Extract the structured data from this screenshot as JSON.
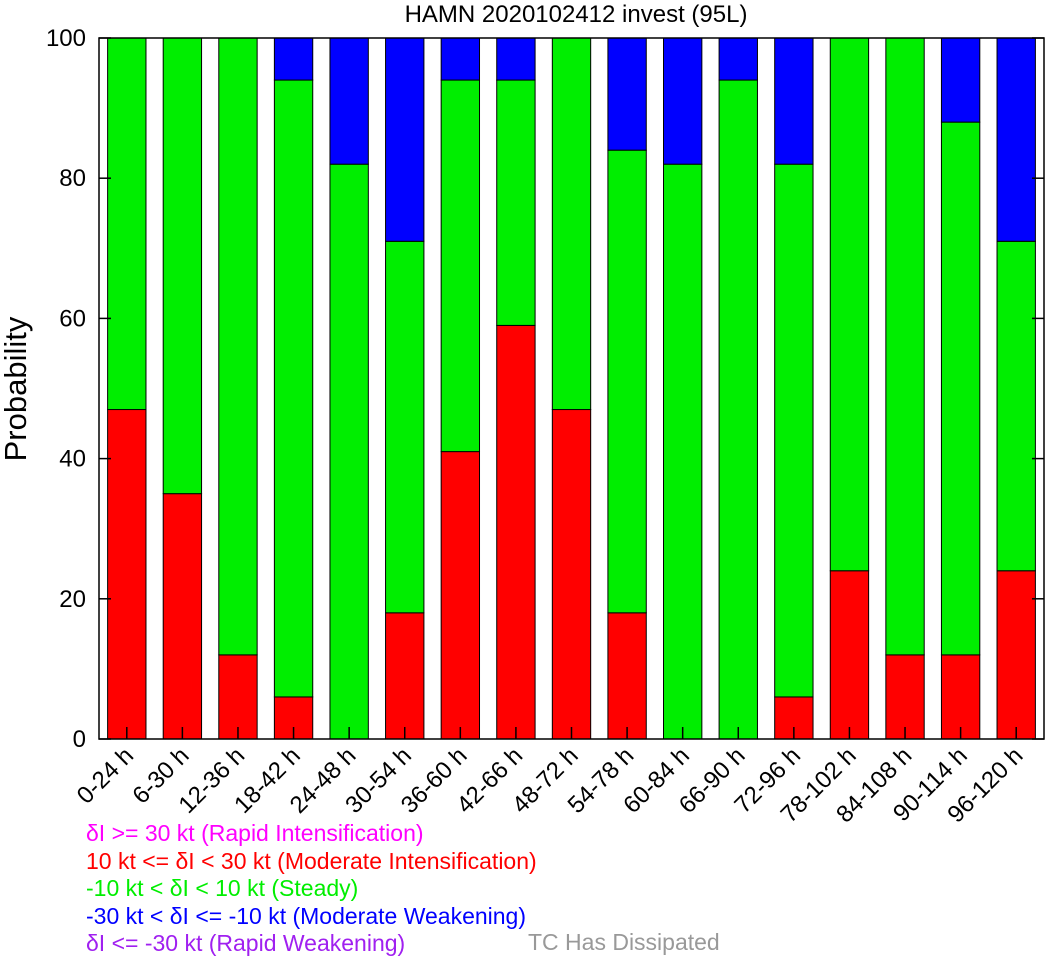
{
  "chart_data": {
    "type": "bar",
    "stacked": true,
    "title": "HAMN 2020102412 invest (95L)",
    "xlabel": "",
    "ylabel": "Probability",
    "ylim": [
      0,
      100
    ],
    "yticks": [
      "0",
      "20",
      "40",
      "60",
      "80",
      "100"
    ],
    "grid": false,
    "categories": [
      "0-24 h",
      "6-30 h",
      "12-36 h",
      "18-42 h",
      "24-48 h",
      "30-54 h",
      "36-60 h",
      "42-66 h",
      "48-72 h",
      "54-78 h",
      "60-84 h",
      "66-90 h",
      "72-96 h",
      "78-102 h",
      "84-108 h",
      "90-114 h",
      "96-120 h"
    ],
    "series": [
      {
        "name": "10 kt <= δI < 30 kt (Moderate Intensification)",
        "color": "#ff0000",
        "values": [
          47,
          35,
          12,
          6,
          0,
          18,
          41,
          59,
          47,
          18,
          0,
          0,
          6,
          24,
          12,
          12,
          24
        ]
      },
      {
        "name": "-10 kt < δI < 10 kt (Steady)",
        "color": "#00ee00",
        "values": [
          53,
          65,
          88,
          88,
          82,
          53,
          53,
          35,
          53,
          66,
          82,
          94,
          76,
          76,
          88,
          76,
          47
        ]
      },
      {
        "name": "-30 kt < δI <= -10 kt (Moderate Weakening)",
        "color": "#0000ff",
        "values": [
          0,
          0,
          0,
          6,
          18,
          29,
          6,
          6,
          0,
          16,
          18,
          6,
          18,
          0,
          0,
          12,
          29
        ]
      }
    ]
  },
  "legend": {
    "items": [
      {
        "text": "δI >= 30 kt (Rapid Intensification)",
        "color": "#ff00ff"
      },
      {
        "text": "10 kt <= δI < 30 kt (Moderate Intensification)",
        "color": "#ff0000"
      },
      {
        "text": "-10 kt < δI < 10 kt (Steady)",
        "color": "#00ee00"
      },
      {
        "text": "-30 kt < δI <= -10 kt (Moderate Weakening)",
        "color": "#0000ff"
      },
      {
        "text": "δI <= -30 kt (Rapid Weakening)",
        "color": "#a020f0"
      }
    ],
    "dissipated": {
      "text": "TC Has Dissipated",
      "color": "#999999"
    }
  }
}
